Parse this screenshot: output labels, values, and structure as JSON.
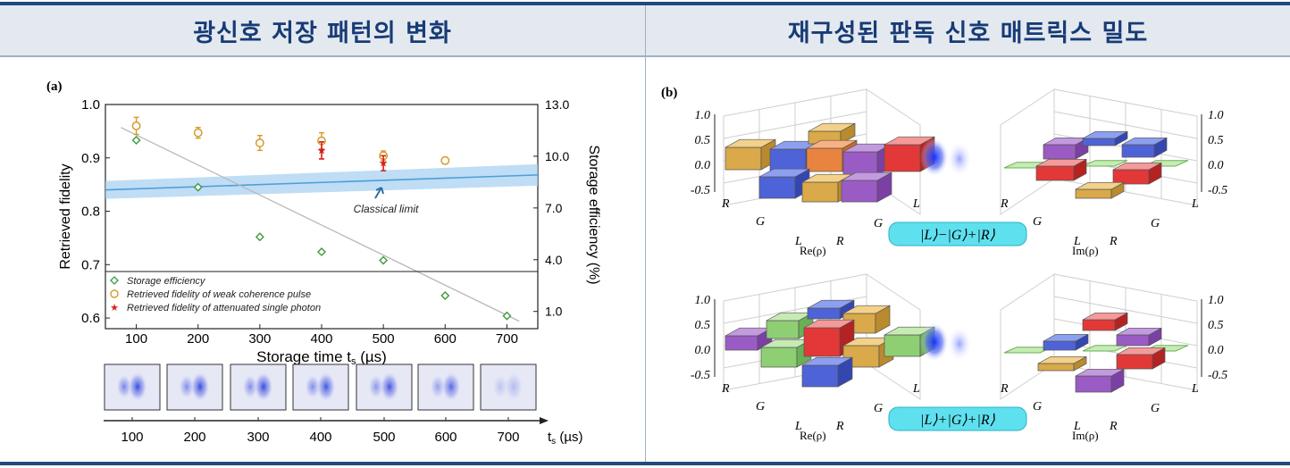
{
  "header": {
    "left_title": "광신호 저장 패턴의 변화",
    "right_title": "재구성된 판독 신호 매트릭스 밀도"
  },
  "chart_data": {
    "type": "scatter",
    "panel_label": "(a)",
    "xlabel": "Storage time t",
    "xlabel_sub": "s",
    "xlabel_unit": " (µs)",
    "ylabel_left": "Retrieved fidelity",
    "ylabel_right": "Storage efficiency (%)",
    "xlim": [
      50,
      750
    ],
    "ylim_left": [
      0.58,
      1.0
    ],
    "ylim_right": [
      0.0,
      13.0
    ],
    "x_ticks": [
      100,
      200,
      300,
      400,
      500,
      600,
      700
    ],
    "y_ticks_left": [
      "0.6",
      "0.7",
      "0.8",
      "0.9",
      "1.0"
    ],
    "y_ticks_right": [
      "1.0",
      "4.0",
      "7.0",
      "10.0",
      "13.0"
    ],
    "series": [
      {
        "name": "Storage efficiency",
        "color": "#3d9a3d",
        "x": [
          100,
          200,
          300,
          400,
          500,
          600,
          700
        ],
        "y": [
          0.933,
          0.845,
          0.752,
          0.724,
          0.708,
          0.642,
          0.604
        ]
      },
      {
        "name": "Retrieved fidelity of weak coherence pulse",
        "color": "#d69a2a",
        "x": [
          100,
          200,
          300,
          400,
          500,
          600
        ],
        "y": [
          0.96,
          0.947,
          0.928,
          0.932,
          0.904,
          0.895
        ],
        "err": [
          0.016,
          0.01,
          0.014,
          0.015,
          0.009,
          0.006
        ]
      },
      {
        "name": "Retrieved fidelity of  attenuated single photon",
        "color": "#d62020",
        "x": [
          400,
          500
        ],
        "y": [
          0.914,
          0.89
        ],
        "err": [
          0.016,
          0.014
        ]
      }
    ],
    "classical_limit_label": "Classical limit",
    "classical_limit": {
      "x": [
        50,
        750
      ],
      "y": [
        0.84,
        0.868
      ]
    },
    "trend_line": {
      "x": [
        75,
        720
      ],
      "y": [
        0.957,
        0.594
      ]
    }
  },
  "strip": {
    "tick_labels": [
      "100",
      "200",
      "300",
      "400",
      "500",
      "600",
      "700"
    ],
    "axis_label": "t",
    "axis_sub": "s",
    "axis_unit": " (µs)"
  },
  "panel_b": {
    "label": "(b)",
    "z_ticks": [
      "1.0",
      "0.5",
      "0.0",
      "-0.5"
    ],
    "axis_letters_a": [
      "R",
      "G",
      "L"
    ],
    "axis_letters_b": [
      "L",
      "R"
    ],
    "re_label": "Re(ρ)",
    "im_label": "Im(ρ)",
    "state_top": "|L⟩−|G⟩+|R⟩",
    "state_bottom": "|L⟩+|G⟩+|R⟩"
  }
}
